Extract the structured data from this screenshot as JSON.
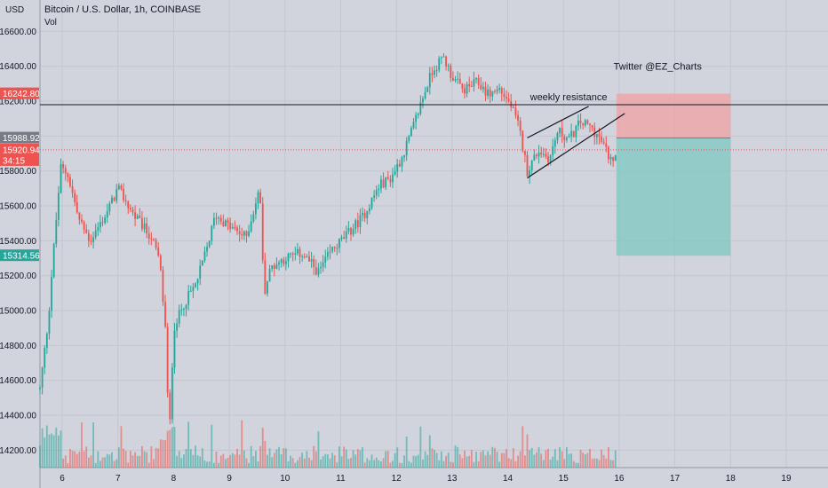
{
  "chart_data": {
    "type": "candlestick",
    "title": "Bitcoin / U.S. Dollar, 1h, COINBASE",
    "volume_label": "Vol",
    "currency_label": "USD",
    "y_ticks": [
      16600,
      16400,
      16200,
      16000,
      15800,
      15600,
      15400,
      15200,
      15000,
      14800,
      14600,
      14400,
      14200
    ],
    "y_tick_labels": [
      "16600.00",
      "16400.00",
      "16200.00",
      "16000.00",
      "15800.00",
      "15600.00",
      "15400.00",
      "15200.00",
      "15000.00",
      "14800.00",
      "14600.00",
      "14400.00",
      "14200.00"
    ],
    "ylim": [
      14100,
      16780
    ],
    "x_ticks": [
      "6",
      "7",
      "8",
      "9",
      "10",
      "11",
      "12",
      "13",
      "14",
      "15",
      "16",
      "17",
      "18",
      "19"
    ],
    "x_range": [
      5.6,
      19.75
    ],
    "price_path": [
      [
        5.6,
        14550
      ],
      [
        5.75,
        14950
      ],
      [
        5.82,
        15250
      ],
      [
        5.9,
        15550
      ],
      [
        5.97,
        15820
      ],
      [
        6.1,
        15780
      ],
      [
        6.3,
        15520
      ],
      [
        6.5,
        15400
      ],
      [
        6.8,
        15560
      ],
      [
        7.0,
        15700
      ],
      [
        7.3,
        15540
      ],
      [
        7.6,
        15420
      ],
      [
        7.75,
        15280
      ],
      [
        7.85,
        14900
      ],
      [
        7.92,
        14250
      ],
      [
        8.0,
        14900
      ],
      [
        8.2,
        15050
      ],
      [
        8.4,
        15150
      ],
      [
        8.6,
        15360
      ],
      [
        8.75,
        15550
      ],
      [
        9.0,
        15480
      ],
      [
        9.3,
        15420
      ],
      [
        9.55,
        15700
      ],
      [
        9.62,
        15100
      ],
      [
        9.75,
        15250
      ],
      [
        10.0,
        15300
      ],
      [
        10.3,
        15330
      ],
      [
        10.6,
        15220
      ],
      [
        10.85,
        15350
      ],
      [
        11.1,
        15430
      ],
      [
        11.4,
        15540
      ],
      [
        11.7,
        15720
      ],
      [
        11.9,
        15760
      ],
      [
        12.1,
        15880
      ],
      [
        12.3,
        16050
      ],
      [
        12.45,
        16200
      ],
      [
        12.65,
        16380
      ],
      [
        12.85,
        16450
      ],
      [
        13.0,
        16340
      ],
      [
        13.2,
        16260
      ],
      [
        13.45,
        16310
      ],
      [
        13.65,
        16240
      ],
      [
        13.85,
        16270
      ],
      [
        14.05,
        16180
      ],
      [
        14.2,
        16050
      ],
      [
        14.35,
        15800
      ],
      [
        14.55,
        15920
      ],
      [
        14.75,
        15870
      ],
      [
        14.9,
        16030
      ],
      [
        15.1,
        15980
      ],
      [
        15.3,
        16080
      ],
      [
        15.5,
        16050
      ],
      [
        15.7,
        15960
      ],
      [
        15.85,
        15860
      ],
      [
        15.95,
        15920
      ]
    ],
    "volume_ylim": [
      0,
      300
    ],
    "horizontal_lines": [
      {
        "label": "weekly resistance",
        "price": 16180,
        "color": "#131722",
        "label_x": 14.4
      }
    ],
    "channel": {
      "upper": [
        [
          14.35,
          15990
        ],
        [
          15.45,
          16170
        ]
      ],
      "lower": [
        [
          14.35,
          15760
        ],
        [
          16.1,
          16130
        ]
      ]
    },
    "position_box": {
      "x_start": 15.95,
      "x_end": 18.0,
      "stop": 16242.8,
      "entry": 15988.92,
      "target": 15314.56,
      "profit_color": "#7ec8c2",
      "loss_color": "#eea4a8"
    },
    "price_labels": [
      {
        "text": "16242.80",
        "price": 16242.8,
        "color": "#ef5350"
      },
      {
        "text": "15988.92",
        "price": 15988.92,
        "color": "#787b86"
      },
      {
        "text": "15920.94",
        "price": 15920.94,
        "color": "#ef5350"
      },
      {
        "text": "34:15",
        "price": 15860,
        "color": "#ef5350"
      },
      {
        "text": "15314.56",
        "price": 15314.56,
        "color": "#26a69a"
      }
    ],
    "current_price": 15920.94,
    "annotations": [
      {
        "text": "Twitter @EZ_Charts",
        "x": 15.9,
        "price": 16380
      }
    ],
    "colors": {
      "up": "#26a69a",
      "down": "#ef5350",
      "background": "#d1d4dc",
      "grid": "#c3c6cf"
    },
    "grid": true
  }
}
